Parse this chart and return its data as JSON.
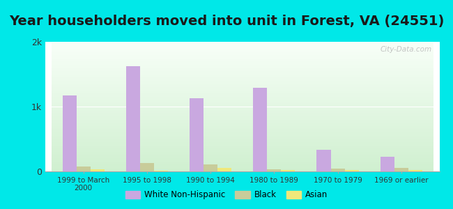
{
  "title": "Year householders moved into unit in Forest, VA (24551)",
  "categories": [
    "1999 to March\n2000",
    "1995 to 1998",
    "1990 to 1994",
    "1980 to 1989",
    "1970 to 1979",
    "1969 or earlier"
  ],
  "white": [
    1170,
    1620,
    1130,
    1290,
    330,
    230
  ],
  "black": [
    70,
    130,
    110,
    35,
    40,
    55
  ],
  "asian": [
    30,
    10,
    55,
    20,
    20,
    20
  ],
  "white_color": "#c9a8e0",
  "black_color": "#c8cc9a",
  "asian_color": "#f0e87a",
  "background_color": "#00e8e8",
  "ylim": [
    0,
    2000
  ],
  "yticks": [
    0,
    1000,
    2000
  ],
  "ytick_labels": [
    "0",
    "1k",
    "2k"
  ],
  "bar_width": 0.22,
  "title_fontsize": 14,
  "watermark": "City-Data.com"
}
